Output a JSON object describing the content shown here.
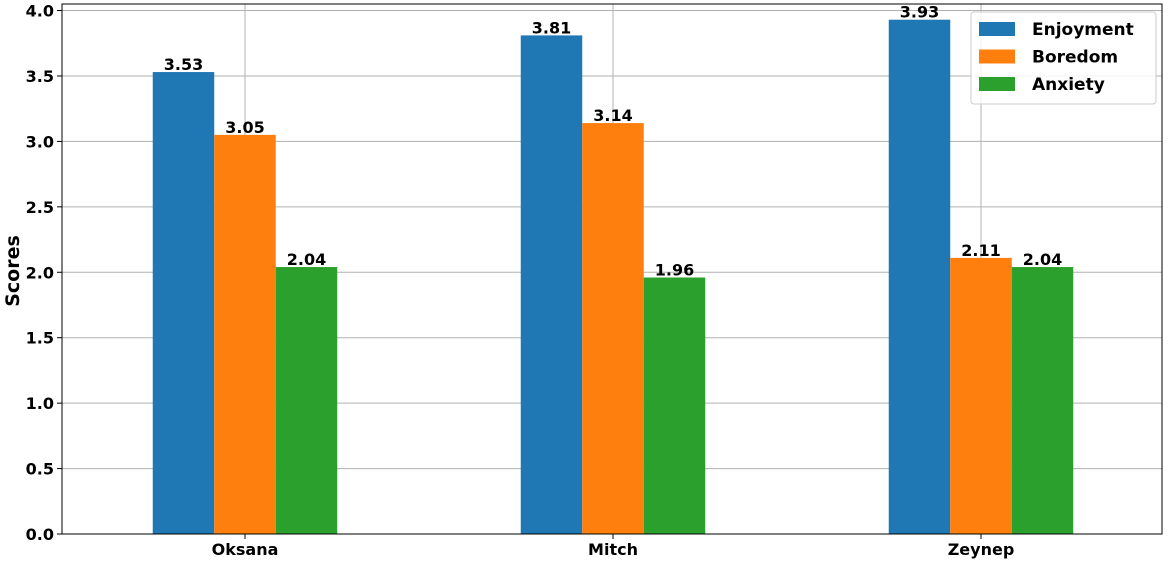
{
  "chart_data": {
    "type": "bar",
    "title": "",
    "xlabel": "",
    "ylabel": "Scores",
    "ylim": [
      0,
      4.05
    ],
    "yticks": [
      0.0,
      0.5,
      1.0,
      1.5,
      2.0,
      2.5,
      3.0,
      3.5,
      4.0
    ],
    "ytick_labels": [
      "0.0",
      "0.5",
      "1.0",
      "1.5",
      "2.0",
      "2.5",
      "3.0",
      "3.5",
      "4.0"
    ],
    "grid": true,
    "legend_position": "top-right",
    "categories": [
      "Oksana",
      "Mitch",
      "Zeynep"
    ],
    "series": [
      {
        "name": "Enjoyment",
        "color": "#1f77b4",
        "values": [
          3.53,
          3.81,
          3.93
        ],
        "labels": [
          "3.53",
          "3.81",
          "3.93"
        ]
      },
      {
        "name": "Boredom",
        "color": "#ff7f0e",
        "values": [
          3.05,
          3.14,
          2.11
        ],
        "labels": [
          "3.05",
          "3.14",
          "2.11"
        ]
      },
      {
        "name": "Anxiety",
        "color": "#2ca02c",
        "values": [
          2.04,
          1.96,
          2.04
        ],
        "labels": [
          "2.04",
          "1.96",
          "2.04"
        ]
      }
    ]
  }
}
